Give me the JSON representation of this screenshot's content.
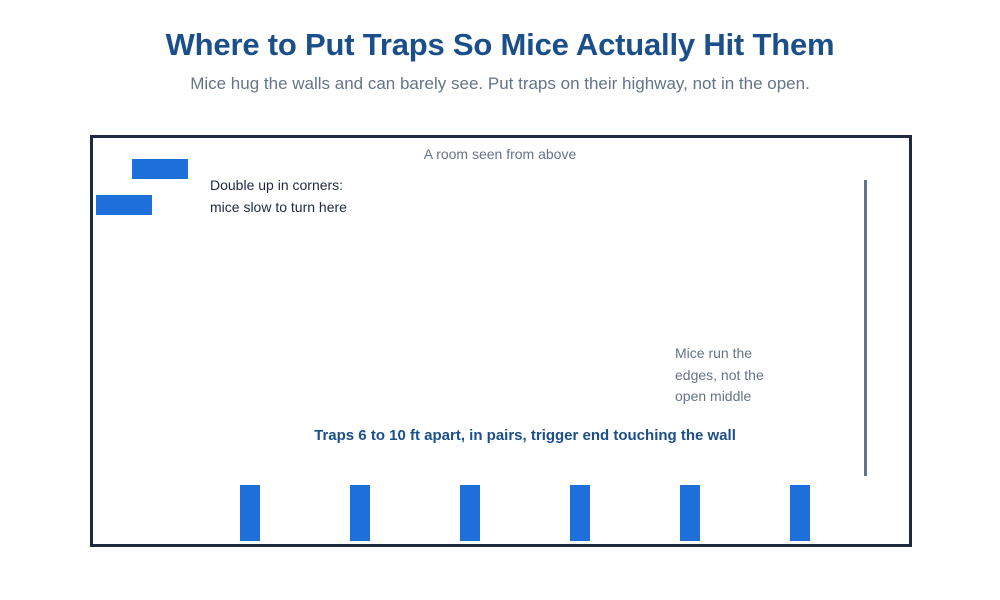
{
  "header": {
    "title": "Where to Put Traps So Mice Actually Hit Them",
    "subtitle": "Mice hug the walls and can barely see. Put traps on their highway, not in the open."
  },
  "room": {
    "label": "A room seen from above",
    "corner_note": {
      "line1": "Double up in corners:",
      "line2": "mice slow to turn here"
    },
    "edge_note": {
      "line1": "Mice run the",
      "line2": "edges, not the",
      "line3": "open middle"
    },
    "caption": "Traps 6 to 10 ft apart, in pairs, trigger end touching the wall",
    "corner_trap_count": 2,
    "wall_trap_count": 6
  },
  "colors": {
    "title": "#1b4f8a",
    "muted_text": "#647488",
    "trap": "#1e6fd9",
    "room_border": "#1e2a40"
  }
}
